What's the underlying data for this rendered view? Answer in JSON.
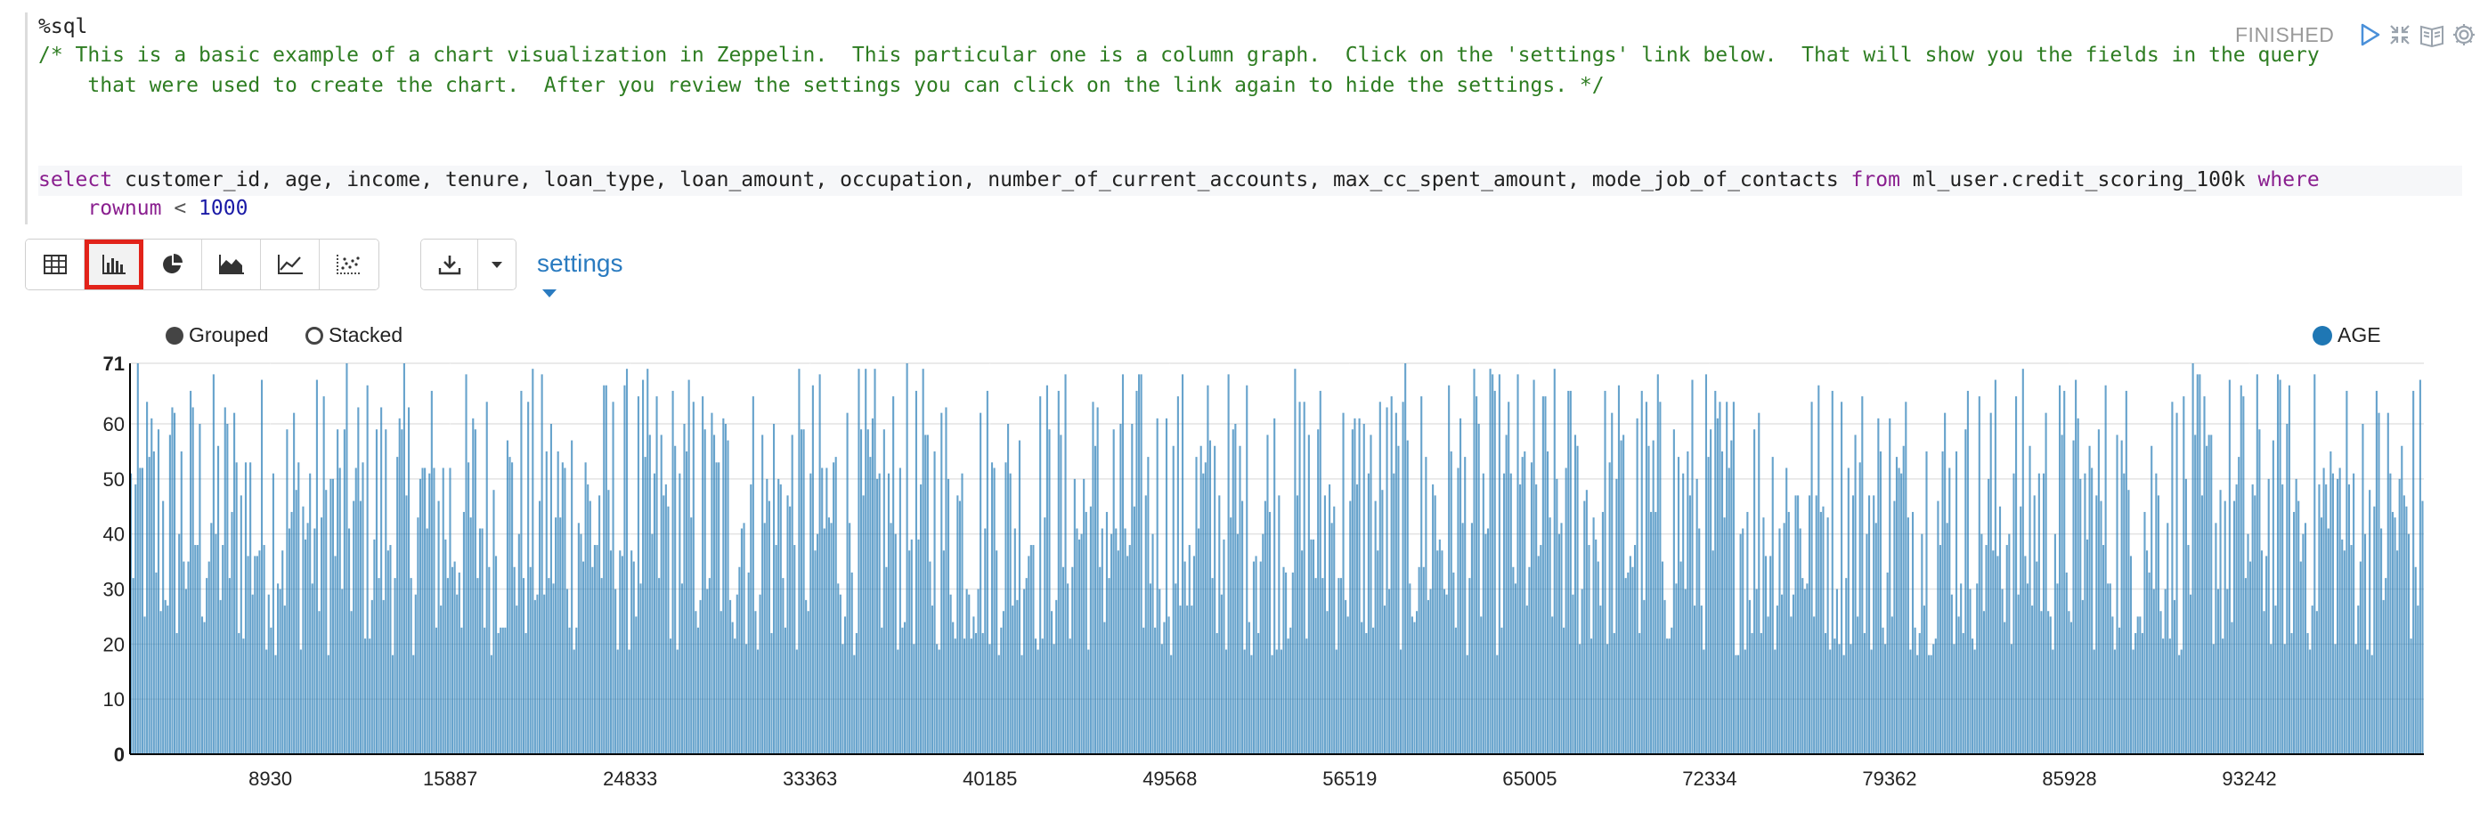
{
  "paragraph": {
    "interpreter": "%sql",
    "status": "FINISHED",
    "comment_line1": "/* This is a basic example of a chart visualization in Zeppelin.  This particular one is a column graph.  Click on the 'settings' link below.  That will show you the fields in the query",
    "comment_line2": "    that were used to create the chart.  After you review the settings you can click on the link again to hide the settings. */",
    "sql": {
      "kw_select": "select",
      "columns": " customer_id, age, income, tenure, loan_type, loan_amount, occupation, number_of_current_accounts, max_cc_spent_amount, mode_job_of_contacts ",
      "kw_from": "from",
      "table": " ml_user.credit_scoring_100k ",
      "kw_where": "where",
      "indent": "    ",
      "kw_rownum": "rownum",
      "op": " < ",
      "limit": "1000"
    },
    "controls": {
      "run_icon": "play-icon",
      "hide_editor_icon": "collapse-arrows-icon",
      "docs_icon": "book-icon",
      "settings_icon": "gear-icon"
    }
  },
  "toolbar": {
    "viz_buttons": [
      "table-icon",
      "bar-chart-icon",
      "pie-chart-icon",
      "area-chart-icon",
      "line-chart-icon",
      "scatter-chart-icon"
    ],
    "active": "bar-chart-icon",
    "download_icon": "download-icon",
    "settings_label": "settings"
  },
  "chart_options": {
    "grouped_label": "Grouped",
    "stacked_label": "Stacked",
    "mode": "Grouped"
  },
  "chart_data": {
    "type": "bar",
    "series": [
      {
        "name": "AGE",
        "color": "#1f77b4"
      }
    ],
    "y_ticks": [
      "0",
      "10",
      "20",
      "30",
      "40",
      "50",
      "60",
      "71"
    ],
    "ylim": [
      0,
      71
    ],
    "x_ticks": [
      "8930",
      "15887",
      "24833",
      "33363",
      "40185",
      "49568",
      "56519",
      "65005",
      "72334",
      "79362",
      "85928",
      "93242"
    ],
    "approx_bar_count": 999,
    "value_range": [
      18,
      71
    ],
    "grid": true,
    "legend": "top-right"
  }
}
